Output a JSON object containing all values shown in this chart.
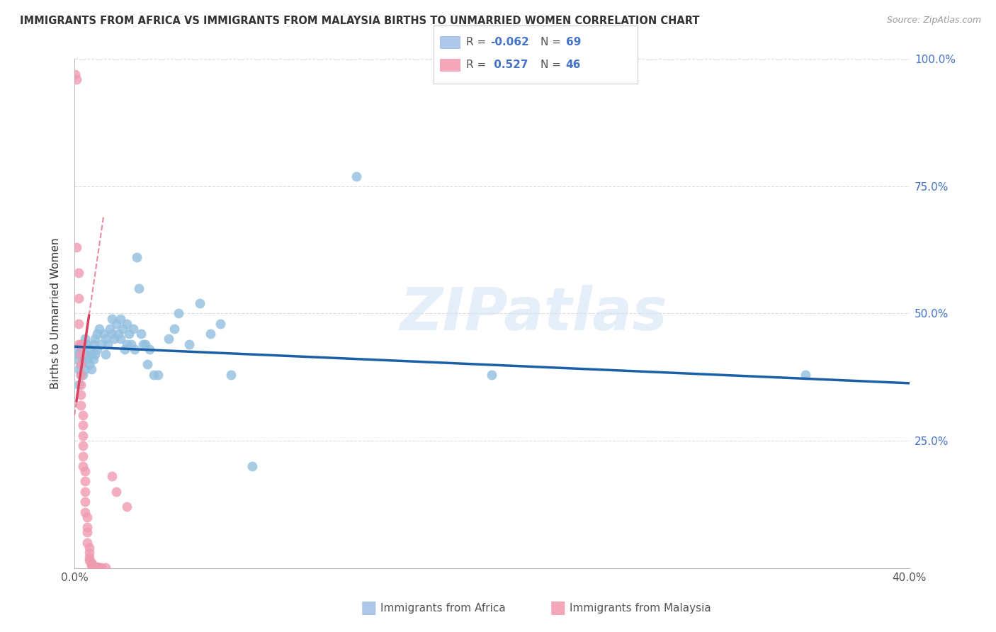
{
  "title": "IMMIGRANTS FROM AFRICA VS IMMIGRANTS FROM MALAYSIA BIRTHS TO UNMARRIED WOMEN CORRELATION CHART",
  "source": "Source: ZipAtlas.com",
  "ylabel": "Births to Unmarried Women",
  "xlim": [
    0.0,
    0.4
  ],
  "ylim": [
    0.0,
    1.0
  ],
  "xticks": [
    0.0,
    0.05,
    0.1,
    0.15,
    0.2,
    0.25,
    0.3,
    0.35,
    0.4
  ],
  "xticklabels": [
    "0.0%",
    "",
    "",
    "",
    "",
    "",
    "",
    "",
    "40.0%"
  ],
  "yticks": [
    0.0,
    0.25,
    0.5,
    0.75,
    1.0
  ],
  "yticklabels_right": [
    "",
    "25.0%",
    "50.0%",
    "75.0%",
    "100.0%"
  ],
  "africa_color": "#92bfdf",
  "malaysia_color": "#f09ab0",
  "africa_line_color": "#1a5fa8",
  "malaysia_line_color": "#d94060",
  "watermark": "ZIPatlas",
  "africa_R": -0.062,
  "africa_N": 69,
  "malaysia_R": 0.527,
  "malaysia_N": 46,
  "africa_line_slope": -0.18,
  "africa_line_intercept": 0.435,
  "malaysia_line_slope": 28.0,
  "malaysia_line_intercept": 0.3,
  "africa_points": [
    [
      0.001,
      0.43
    ],
    [
      0.001,
      0.41
    ],
    [
      0.002,
      0.39
    ],
    [
      0.002,
      0.36
    ],
    [
      0.002,
      0.42
    ],
    [
      0.003,
      0.43
    ],
    [
      0.003,
      0.38
    ],
    [
      0.003,
      0.4
    ],
    [
      0.004,
      0.44
    ],
    [
      0.004,
      0.41
    ],
    [
      0.004,
      0.38
    ],
    [
      0.005,
      0.45
    ],
    [
      0.005,
      0.42
    ],
    [
      0.005,
      0.39
    ],
    [
      0.006,
      0.44
    ],
    [
      0.006,
      0.41
    ],
    [
      0.007,
      0.43
    ],
    [
      0.007,
      0.4
    ],
    [
      0.008,
      0.42
    ],
    [
      0.008,
      0.39
    ],
    [
      0.009,
      0.44
    ],
    [
      0.009,
      0.41
    ],
    [
      0.01,
      0.45
    ],
    [
      0.01,
      0.42
    ],
    [
      0.011,
      0.46
    ],
    [
      0.011,
      0.43
    ],
    [
      0.012,
      0.47
    ],
    [
      0.013,
      0.44
    ],
    [
      0.014,
      0.46
    ],
    [
      0.015,
      0.45
    ],
    [
      0.015,
      0.42
    ],
    [
      0.016,
      0.44
    ],
    [
      0.017,
      0.47
    ],
    [
      0.018,
      0.49
    ],
    [
      0.018,
      0.46
    ],
    [
      0.019,
      0.45
    ],
    [
      0.02,
      0.48
    ],
    [
      0.021,
      0.46
    ],
    [
      0.022,
      0.49
    ],
    [
      0.022,
      0.45
    ],
    [
      0.023,
      0.47
    ],
    [
      0.024,
      0.43
    ],
    [
      0.025,
      0.48
    ],
    [
      0.025,
      0.44
    ],
    [
      0.026,
      0.46
    ],
    [
      0.027,
      0.44
    ],
    [
      0.028,
      0.47
    ],
    [
      0.029,
      0.43
    ],
    [
      0.03,
      0.61
    ],
    [
      0.031,
      0.55
    ],
    [
      0.032,
      0.46
    ],
    [
      0.033,
      0.44
    ],
    [
      0.034,
      0.44
    ],
    [
      0.035,
      0.4
    ],
    [
      0.036,
      0.43
    ],
    [
      0.038,
      0.38
    ],
    [
      0.04,
      0.38
    ],
    [
      0.045,
      0.45
    ],
    [
      0.048,
      0.47
    ],
    [
      0.05,
      0.5
    ],
    [
      0.055,
      0.44
    ],
    [
      0.06,
      0.52
    ],
    [
      0.065,
      0.46
    ],
    [
      0.07,
      0.48
    ],
    [
      0.075,
      0.38
    ],
    [
      0.085,
      0.2
    ],
    [
      0.135,
      0.77
    ],
    [
      0.2,
      0.38
    ],
    [
      0.35,
      0.38
    ]
  ],
  "malaysia_points": [
    [
      0.0005,
      0.97
    ],
    [
      0.001,
      0.96
    ],
    [
      0.001,
      0.63
    ],
    [
      0.002,
      0.58
    ],
    [
      0.002,
      0.53
    ],
    [
      0.002,
      0.48
    ],
    [
      0.002,
      0.44
    ],
    [
      0.003,
      0.42
    ],
    [
      0.003,
      0.4
    ],
    [
      0.003,
      0.38
    ],
    [
      0.003,
      0.36
    ],
    [
      0.003,
      0.34
    ],
    [
      0.003,
      0.32
    ],
    [
      0.004,
      0.3
    ],
    [
      0.004,
      0.28
    ],
    [
      0.004,
      0.26
    ],
    [
      0.004,
      0.24
    ],
    [
      0.004,
      0.22
    ],
    [
      0.004,
      0.2
    ],
    [
      0.005,
      0.19
    ],
    [
      0.005,
      0.17
    ],
    [
      0.005,
      0.15
    ],
    [
      0.005,
      0.13
    ],
    [
      0.005,
      0.11
    ],
    [
      0.006,
      0.1
    ],
    [
      0.006,
      0.08
    ],
    [
      0.006,
      0.07
    ],
    [
      0.006,
      0.05
    ],
    [
      0.007,
      0.04
    ],
    [
      0.007,
      0.03
    ],
    [
      0.007,
      0.02
    ],
    [
      0.007,
      0.015
    ],
    [
      0.008,
      0.01
    ],
    [
      0.008,
      0.008
    ],
    [
      0.008,
      0.005
    ],
    [
      0.009,
      0.003
    ],
    [
      0.01,
      0.002
    ],
    [
      0.01,
      0.001
    ],
    [
      0.011,
      0.0015
    ],
    [
      0.012,
      0.001
    ],
    [
      0.013,
      0.001
    ],
    [
      0.015,
      0.001
    ],
    [
      0.018,
      0.18
    ],
    [
      0.02,
      0.15
    ],
    [
      0.025,
      0.12
    ],
    [
      0.003,
      0.44
    ]
  ]
}
